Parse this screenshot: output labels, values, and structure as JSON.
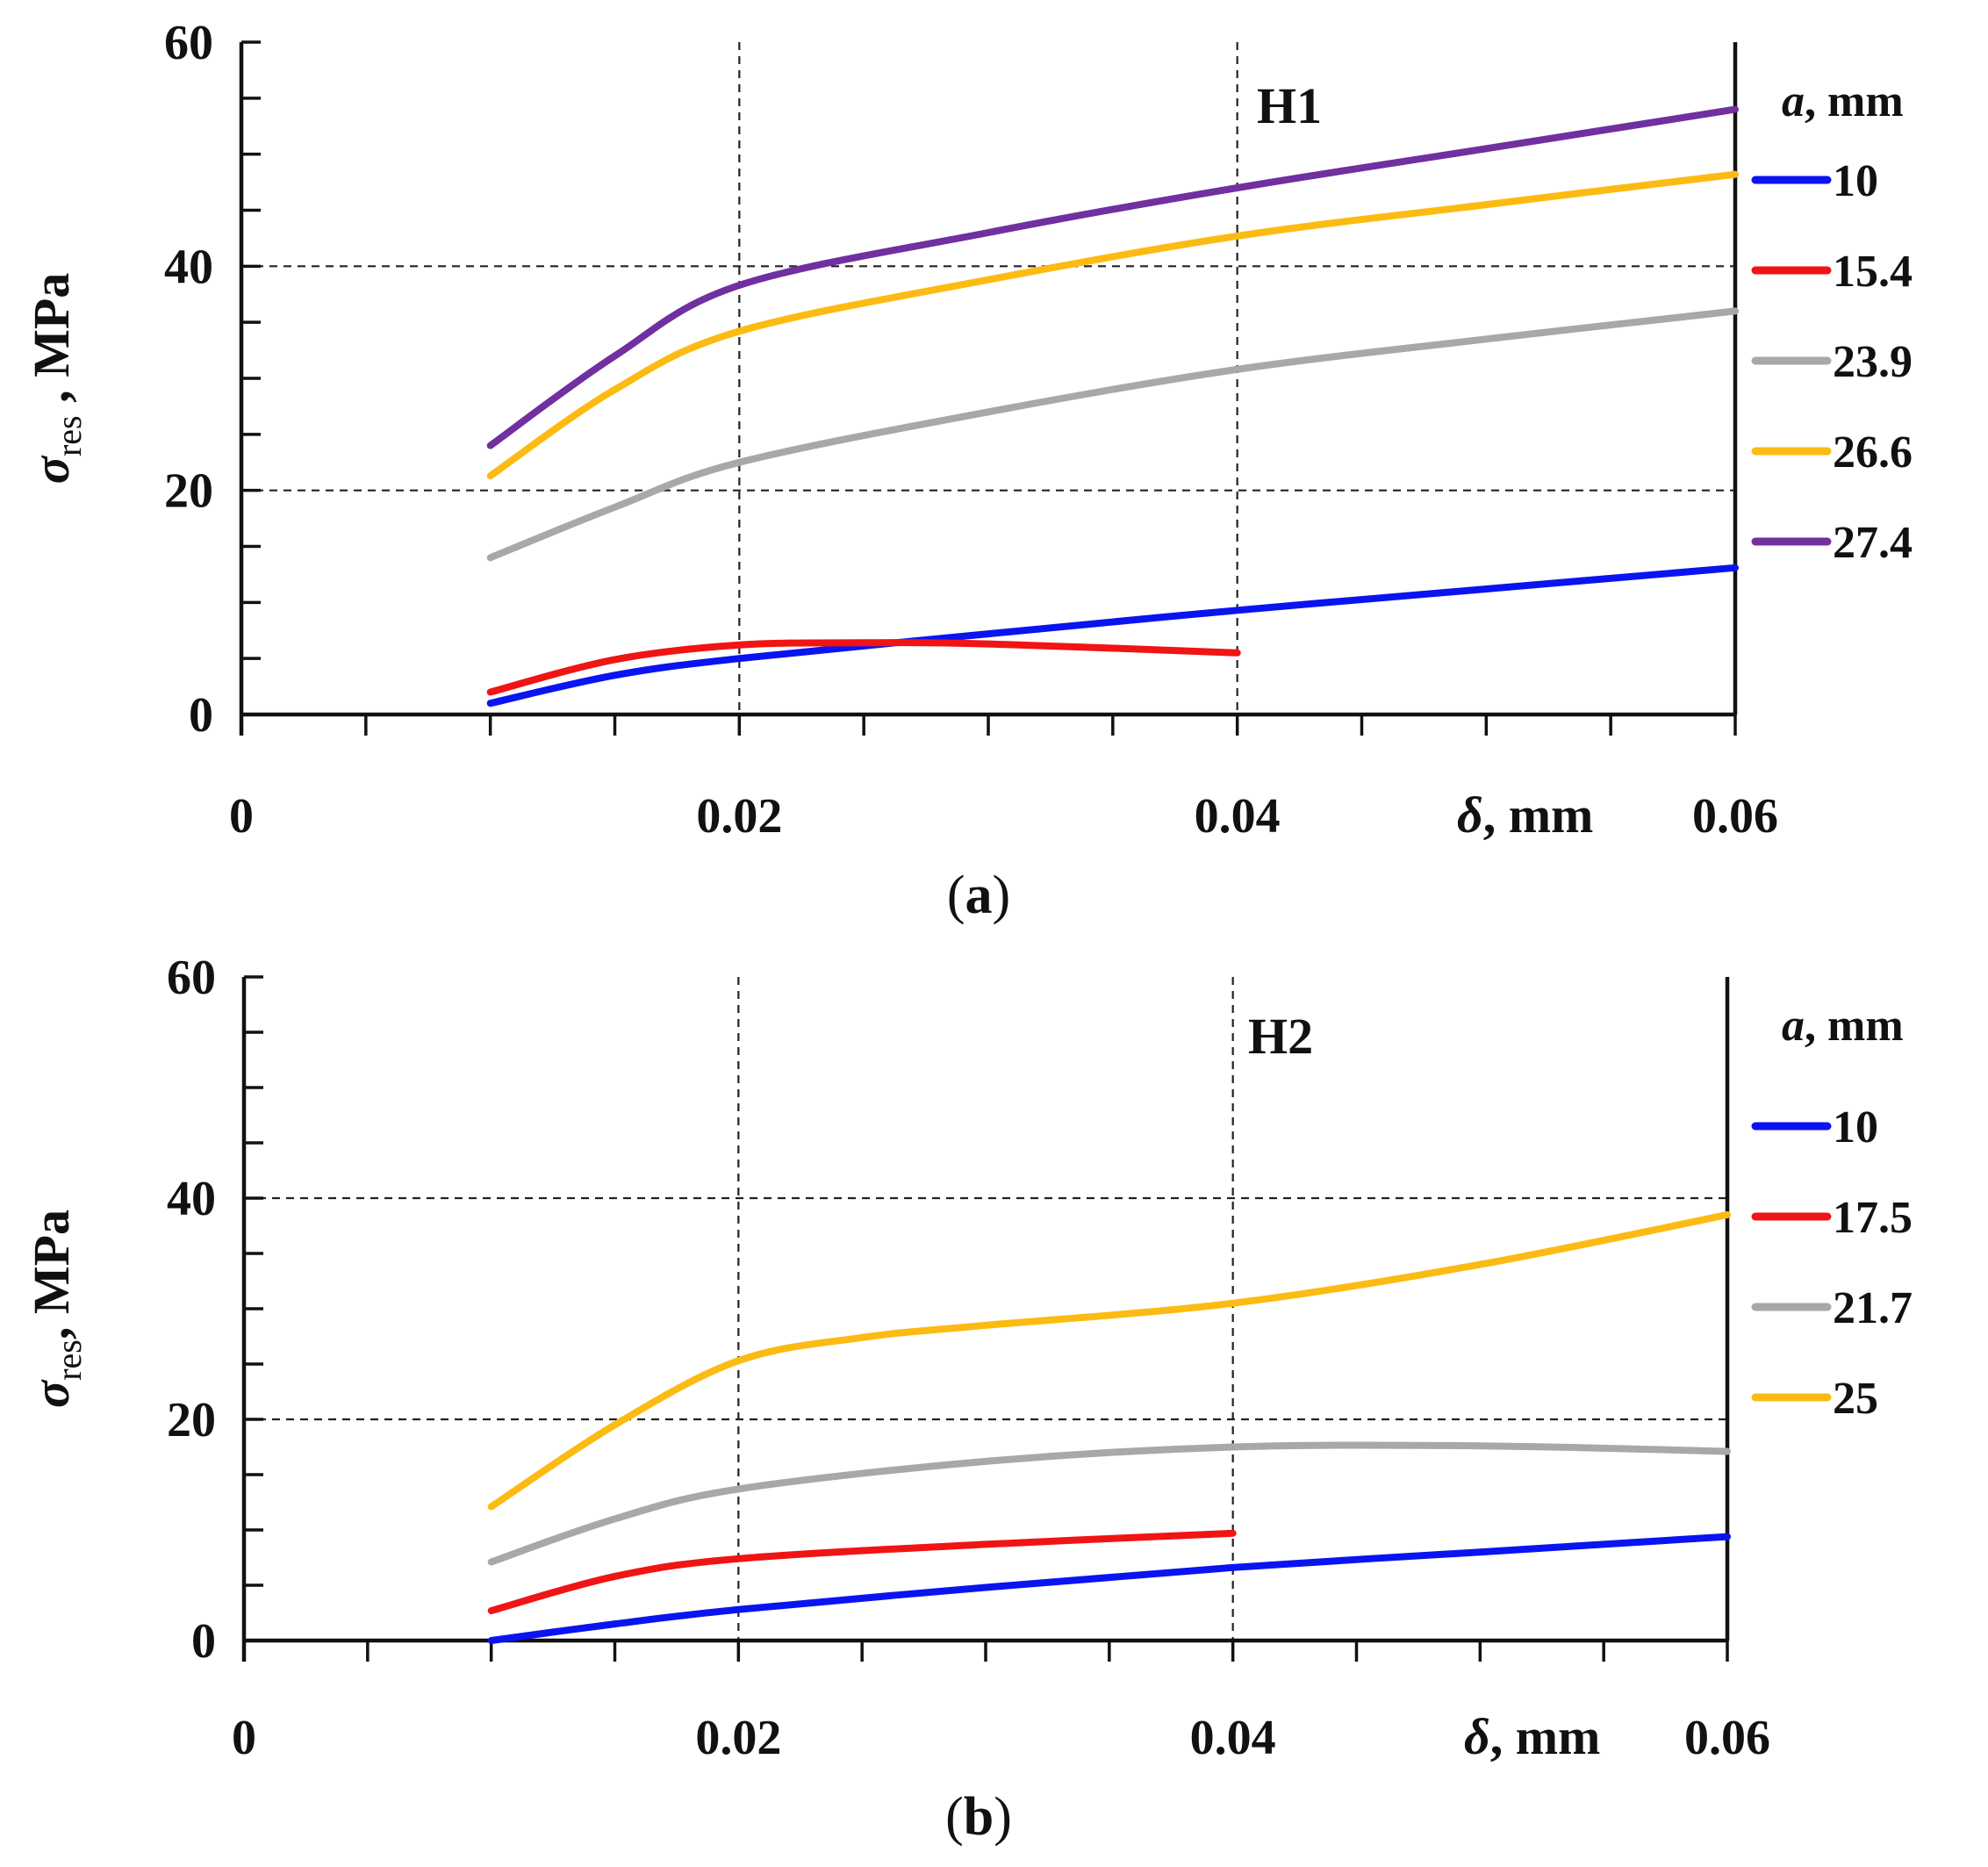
{
  "colors": {
    "blue": "#0a14f0",
    "red": "#f01414",
    "gray": "#a8a8a8",
    "gold": "#fbbb12",
    "purple": "#7030a0"
  },
  "chart_data": [
    {
      "type": "line",
      "panel_label": "H1",
      "caption": {
        "open": "(",
        "letter": "a",
        "close": ")"
      },
      "ylabel": {
        "symbol": "σ",
        "subscript": "res",
        "unit": " , MPa"
      },
      "xlabel": {
        "symbol": "δ",
        "unit": ", mm"
      },
      "xlim": [
        0,
        0.06
      ],
      "ylim": [
        0,
        60
      ],
      "x_tick_labels": [
        {
          "value": 0,
          "label": "0"
        },
        {
          "value": 0.02,
          "label": "0.02"
        },
        {
          "value": 0.04,
          "label": "0.04"
        },
        {
          "value": 0.06,
          "label": "0.06"
        }
      ],
      "y_tick_labels": [
        {
          "value": 0,
          "label": "0"
        },
        {
          "value": 20,
          "label": "20"
        },
        {
          "value": 40,
          "label": "40"
        },
        {
          "value": 60,
          "label": "60"
        }
      ],
      "x_minor_step": 0.005,
      "y_minor_step": 5,
      "grid": {
        "x": [
          0.02,
          0.04
        ],
        "y": [
          20,
          40
        ],
        "style": "dashed"
      },
      "legend": {
        "title": {
          "symbol": "a",
          "unit": ", mm"
        },
        "placement": "right"
      },
      "series": [
        {
          "name": "10",
          "color": "blue",
          "x": [
            0.01,
            0.015,
            0.02,
            0.03,
            0.04,
            0.05,
            0.06
          ],
          "y": [
            1,
            3.5,
            5,
            7.2,
            9.3,
            11.2,
            13.1
          ]
        },
        {
          "name": "15.4",
          "color": "red",
          "x": [
            0.01,
            0.015,
            0.02,
            0.025,
            0.03,
            0.04
          ],
          "y": [
            2,
            4.9,
            6.2,
            6.4,
            6.3,
            5.5
          ]
        },
        {
          "name": "23.9",
          "color": "gray",
          "x": [
            0.01,
            0.015,
            0.02,
            0.03,
            0.04,
            0.05,
            0.06
          ],
          "y": [
            14,
            18.5,
            22.5,
            27,
            30.8,
            33.5,
            36
          ]
        },
        {
          "name": "26.6",
          "color": "gold",
          "x": [
            0.01,
            0.015,
            0.02,
            0.03,
            0.04,
            0.05,
            0.06
          ],
          "y": [
            21.3,
            29,
            34.2,
            38.8,
            42.7,
            45.5,
            48.2
          ]
        },
        {
          "name": "27.4",
          "color": "purple",
          "x": [
            0.01,
            0.015,
            0.02,
            0.03,
            0.04,
            0.05,
            0.06
          ],
          "y": [
            24,
            32,
            38.3,
            43,
            47,
            50.5,
            54
          ]
        }
      ]
    },
    {
      "type": "line",
      "panel_label": "H2",
      "caption": {
        "open": "(",
        "letter": "b",
        "close": ")"
      },
      "ylabel": {
        "symbol": "σ",
        "subscript": "res",
        "unit": ", MPa"
      },
      "xlabel": {
        "symbol": "δ",
        "unit": ", mm"
      },
      "xlim": [
        0,
        0.06
      ],
      "ylim": [
        0,
        60
      ],
      "x_tick_labels": [
        {
          "value": 0,
          "label": "0"
        },
        {
          "value": 0.02,
          "label": "0.02"
        },
        {
          "value": 0.04,
          "label": "0.04"
        },
        {
          "value": 0.06,
          "label": "0.06"
        }
      ],
      "y_tick_labels": [
        {
          "value": 0,
          "label": "0"
        },
        {
          "value": 20,
          "label": "20"
        },
        {
          "value": 40,
          "label": "40"
        },
        {
          "value": 60,
          "label": "60"
        }
      ],
      "x_minor_step": 0.005,
      "y_minor_step": 5,
      "grid": {
        "x": [
          0.02,
          0.04
        ],
        "y": [
          20,
          40
        ],
        "style": "dashed"
      },
      "legend": {
        "title": {
          "symbol": "a",
          "unit": ", mm"
        },
        "placement": "right"
      },
      "series": [
        {
          "name": "10",
          "color": "blue",
          "x": [
            0.01,
            0.015,
            0.02,
            0.03,
            0.04,
            0.05,
            0.06
          ],
          "y": [
            0,
            1.5,
            2.8,
            4.8,
            6.6,
            8,
            9.4
          ]
        },
        {
          "name": "17.5",
          "color": "red",
          "x": [
            0.01,
            0.015,
            0.02,
            0.03,
            0.04
          ],
          "y": [
            2.7,
            5.8,
            7.4,
            8.7,
            9.7
          ]
        },
        {
          "name": "21.7",
          "color": "gray",
          "x": [
            0.01,
            0.015,
            0.02,
            0.03,
            0.04,
            0.05,
            0.06
          ],
          "y": [
            7.1,
            11,
            13.7,
            16.2,
            17.5,
            17.6,
            17.1
          ]
        },
        {
          "name": "25",
          "color": "gold",
          "x": [
            0.01,
            0.015,
            0.02,
            0.025,
            0.03,
            0.04,
            0.05,
            0.06
          ],
          "y": [
            12.1,
            19.5,
            25.3,
            27.4,
            28.5,
            30.5,
            34,
            38.5
          ]
        }
      ]
    }
  ]
}
